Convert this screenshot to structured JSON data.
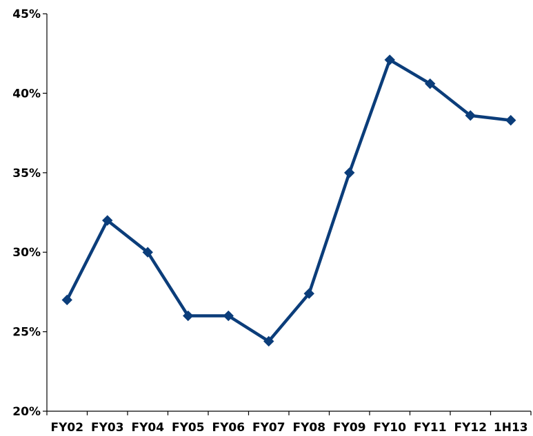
{
  "chart_data": {
    "type": "line",
    "title": "",
    "xlabel": "",
    "ylabel": "",
    "categories": [
      "FY02",
      "FY03",
      "FY04",
      "FY05",
      "FY06",
      "FY07",
      "FY08",
      "FY09",
      "FY10",
      "FY11",
      "FY12",
      "1H13"
    ],
    "series": [
      {
        "values": [
          27.0,
          32.0,
          30.0,
          26.0,
          26.0,
          24.4,
          27.4,
          35.0,
          42.1,
          40.6,
          38.6,
          38.3
        ]
      }
    ],
    "ylim": [
      20,
      45
    ],
    "yticks": [
      20,
      25,
      30,
      35,
      40,
      45
    ],
    "ytick_labels": [
      "20%",
      "25%",
      "30%",
      "35%",
      "40%",
      "45%"
    ],
    "grid": false,
    "legend": "none",
    "colors": {
      "line": "#0b3d7a",
      "axis": "#000000",
      "text": "#000000"
    },
    "marker": "diamond"
  }
}
